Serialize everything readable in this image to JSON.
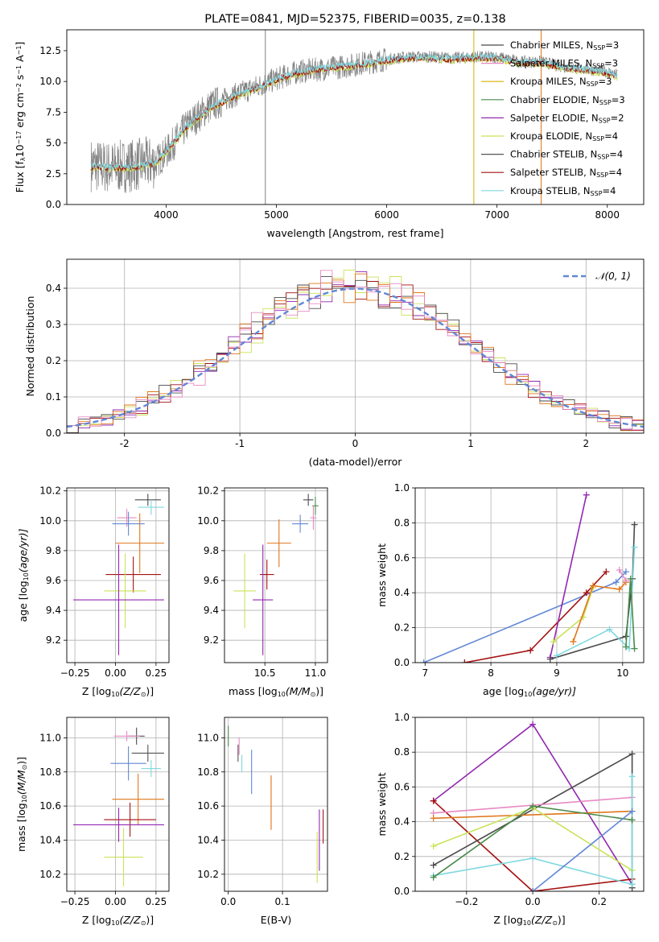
{
  "colors": {
    "Chabrier MILES": "#4a4a4a",
    "Salpeter MILES": "#e78ac3",
    "Kroupa MILES": "#d8b000",
    "Chabrier ELODIE": "#4b8a4b",
    "Salpeter ELODIE": "#9228b0",
    "Kroupa ELODIE": "#c9e35a",
    "Chabrier STELIB": "#555555",
    "Salpeter STELIB": "#a41212",
    "Kroupa STELIB": "#7fd8e0",
    "orange": "#e0761b",
    "blue": "#6187d6",
    "gray": "#808080",
    "normal": "#6187d6"
  },
  "chart_data": [
    {
      "id": "spectrum",
      "type": "line",
      "title": "PLATE=0841, MJD=52375, FIBERID=0035, z=0.138",
      "xlabel": "wavelength [Angstrom, rest frame]",
      "ylabel": "Flux [f",
      "ylabel_parts": [
        "Flux [f",
        "λ",
        "10",
        "−17",
        " erg cm",
        "−2",
        " s",
        "−1",
        " A",
        "−1",
        "]"
      ],
      "xlim": [
        3100,
        8330
      ],
      "ylim": [
        0,
        14.2
      ],
      "xticks": [
        4000,
        5000,
        6000,
        7000,
        8000
      ],
      "yticks": [
        0.0,
        2.5,
        5.0,
        7.5,
        10.0,
        12.5
      ],
      "grid": false,
      "legend_position": "top-right",
      "legend": [
        {
          "name": "Chabrier MILES",
          "nssp": "3"
        },
        {
          "name": "Salpeter MILES",
          "nssp": "3"
        },
        {
          "name": "Kroupa MILES",
          "nssp": "3"
        },
        {
          "name": "Chabrier ELODIE",
          "nssp": "3"
        },
        {
          "name": "Salpeter ELODIE",
          "nssp": "2"
        },
        {
          "name": "Kroupa ELODIE",
          "nssp": "4"
        },
        {
          "name": "Chabrier STELIB",
          "nssp": "4"
        },
        {
          "name": "Salpeter STELIB",
          "nssp": "4"
        },
        {
          "name": "Kroupa STELIB",
          "nssp": "4"
        }
      ],
      "nssp_label": "N",
      "nssp_sub": "SSP",
      "data_anchor_x": [
        3320,
        3500,
        3700,
        3900,
        4000,
        4200,
        4400,
        4600,
        4800,
        5000,
        5200,
        5400,
        5600,
        5800,
        6000,
        6200,
        6400,
        6600,
        6800,
        7000,
        7200,
        7400,
        7600,
        7800,
        8000,
        8090
      ],
      "observed_y": [
        3.2,
        3.0,
        3.2,
        3.4,
        4.2,
        6.5,
        8.0,
        8.8,
        9.5,
        10.2,
        10.8,
        11.0,
        11.2,
        11.5,
        11.8,
        12.0,
        12.0,
        11.9,
        12.0,
        12.0,
        11.6,
        11.6,
        11.2,
        11.0,
        10.8,
        10.5
      ],
      "model_y": [
        3.0,
        3.0,
        3.0,
        3.3,
        4.3,
        6.4,
        7.8,
        8.7,
        9.4,
        10.1,
        10.7,
        11.0,
        11.2,
        11.4,
        11.7,
        11.9,
        11.9,
        11.8,
        11.9,
        11.9,
        11.5,
        11.5,
        11.1,
        10.9,
        10.7,
        10.4
      ],
      "vertical_spikes": [
        {
          "x": 4900,
          "color": "gray"
        },
        {
          "x": 6790,
          "color": "Kroupa MILES"
        },
        {
          "x": 7400,
          "color": "orange"
        }
      ]
    },
    {
      "id": "residuals",
      "type": "step",
      "xlabel": "(data-model)/error",
      "ylabel": "Normed distribution",
      "xlim": [
        -2.5,
        2.5
      ],
      "ylim": [
        0,
        0.48
      ],
      "xticks": [
        -2,
        -1,
        0,
        1,
        2
      ],
      "yticks": [
        0.0,
        0.1,
        0.2,
        0.3,
        0.4
      ],
      "grid": true,
      "legend_position": "top-right",
      "legend": [
        {
          "name": "𝒩(0, 1)",
          "style": "dashed"
        }
      ],
      "normal_curve": {
        "mean": 0,
        "sigma": 1
      },
      "bin_width": 0.1,
      "series": [
        {
          "name": "Salpeter ELODIE",
          "values_mid": [
            -0.85,
            0.44,
            0.0,
            0.46,
            0.3
          ]
        },
        {
          "name": "Kroupa ELODIE",
          "values_mid": [
            -0.65,
            0.43,
            0.0,
            0.43,
            0.28
          ]
        },
        {
          "name": "Salpeter STELIB",
          "values_mid": [
            0.0,
            0.4,
            0.0,
            0.4,
            0.3
          ]
        },
        {
          "name": "orange",
          "values_mid": [
            0.0,
            0.4,
            0.0,
            0.4,
            0.3
          ]
        }
      ]
    },
    {
      "id": "age-vs-Z",
      "type": "errorbar",
      "xlabel": "Z [log",
      "xlabel_parts": [
        "Z [log",
        "10",
        "(Z/Z",
        "⊙",
        ")]"
      ],
      "ylabel_parts": [
        "age  [log",
        "10",
        "(age/yr)]"
      ],
      "xlim": [
        -0.3,
        0.33
      ],
      "ylim": [
        9.05,
        10.22
      ],
      "xticks": [
        -0.25,
        0.0,
        0.25
      ],
      "xticklabels": [
        "−0.25",
        "0.00",
        "0.25"
      ],
      "yticks": [
        9.2,
        9.4,
        9.6,
        9.8,
        10.0,
        10.2
      ],
      "grid": true,
      "points": [
        {
          "color": "Chabrier MILES",
          "x": 0.2,
          "xerr": 0.08,
          "y": 10.14,
          "yerr": 0.04
        },
        {
          "color": "Kroupa STELIB",
          "x": 0.22,
          "xerr": 0.08,
          "y": 10.09,
          "yerr": 0.05
        },
        {
          "color": "Salpeter MILES",
          "x": 0.07,
          "xerr": 0.06,
          "y": 10.02,
          "yerr": 0.06
        },
        {
          "color": "blue",
          "x": 0.08,
          "xerr": 0.1,
          "y": 9.98,
          "yerr": 0.08
        },
        {
          "color": "orange",
          "x": 0.15,
          "xerr": 0.15,
          "y": 9.85,
          "yerr": 0.2
        },
        {
          "color": "Salpeter STELIB",
          "x": 0.11,
          "xerr": 0.17,
          "y": 9.64,
          "yerr": 0.12
        },
        {
          "color": "Kroupa ELODIE",
          "x": 0.06,
          "xerr": 0.13,
          "y": 9.53,
          "yerr": 0.25
        },
        {
          "color": "Salpeter ELODIE",
          "x": 0.02,
          "xerr": 0.28,
          "y": 9.47,
          "yerr": 0.37
        }
      ]
    },
    {
      "id": "age-vs-mass",
      "type": "errorbar",
      "xlabel_parts": [
        "mass [log",
        "10",
        "(M/M",
        "⊙",
        ")]"
      ],
      "xlim": [
        10.1,
        11.12
      ],
      "ylim": [
        9.05,
        10.22
      ],
      "xticks": [
        10.5,
        11.0
      ],
      "xticklabels": [
        "10.5",
        "11.0"
      ],
      "yticks": [
        9.2,
        9.4,
        9.6,
        9.8,
        10.0,
        10.2
      ],
      "grid": true,
      "points": [
        {
          "color": "Chabrier MILES",
          "x": 10.93,
          "xerr": 0.05,
          "y": 10.14,
          "yerr": 0.04
        },
        {
          "color": "Chabrier ELODIE",
          "x": 11.0,
          "xerr": 0.03,
          "y": 10.1,
          "yerr": 0.06
        },
        {
          "color": "Salpeter MILES",
          "x": 10.98,
          "xerr": 0.03,
          "y": 10.02,
          "yerr": 0.08
        },
        {
          "color": "blue",
          "x": 10.85,
          "xerr": 0.08,
          "y": 9.98,
          "yerr": 0.06
        },
        {
          "color": "orange",
          "x": 10.64,
          "xerr": 0.12,
          "y": 9.85,
          "yerr": 0.16
        },
        {
          "color": "Salpeter STELIB",
          "x": 10.52,
          "xerr": 0.07,
          "y": 9.64,
          "yerr": 0.1
        },
        {
          "color": "Kroupa ELODIE",
          "x": 10.3,
          "xerr": 0.11,
          "y": 9.53,
          "yerr": 0.25
        },
        {
          "color": "Salpeter ELODIE",
          "x": 10.48,
          "xerr": 0.1,
          "y": 9.47,
          "yerr": 0.37
        }
      ]
    },
    {
      "id": "weight-vs-age",
      "type": "line",
      "xlabel_parts": [
        "age  [log",
        "10",
        "(age/yr)]"
      ],
      "ylabel": "mass weight",
      "xlim": [
        6.85,
        10.32
      ],
      "ylim": [
        0,
        1.0
      ],
      "xticks": [
        7,
        8,
        9,
        10
      ],
      "yticks": [
        0.0,
        0.2,
        0.4,
        0.6,
        0.8,
        1.0
      ],
      "grid": true,
      "series": [
        {
          "name": "blue",
          "x": [
            6.98,
            9.9,
            10.05
          ],
          "y": [
            0.0,
            0.46,
            0.52
          ]
        },
        {
          "name": "Salpeter STELIB",
          "x": [
            7.6,
            8.6,
            9.45,
            9.75
          ],
          "y": [
            0.0,
            0.07,
            0.4,
            0.52
          ]
        },
        {
          "name": "Salpeter ELODIE",
          "x": [
            8.9,
            9.45
          ],
          "y": [
            0.03,
            0.96
          ]
        },
        {
          "name": "Chabrier MILES",
          "x": [
            8.9,
            10.05,
            10.15,
            10.18
          ],
          "y": [
            0.02,
            0.15,
            0.48,
            0.79
          ]
        },
        {
          "name": "Kroupa ELODIE",
          "x": [
            8.95,
            9.4,
            9.55
          ],
          "y": [
            0.12,
            0.26,
            0.43
          ]
        },
        {
          "name": "Kroupa STELIB",
          "x": [
            9.0,
            9.8,
            10.1,
            10.18
          ],
          "y": [
            0.04,
            0.19,
            0.08,
            0.66
          ]
        },
        {
          "name": "orange",
          "x": [
            9.25,
            9.55,
            9.95,
            10.05
          ],
          "y": [
            0.12,
            0.44,
            0.42,
            0.46
          ]
        },
        {
          "name": "Chabrier ELODIE",
          "x": [
            10.05,
            10.12,
            10.18
          ],
          "y": [
            0.09,
            0.48,
            0.08
          ]
        },
        {
          "name": "Salpeter MILES",
          "x": [
            9.95,
            10.05
          ],
          "y": [
            0.53,
            0.47
          ]
        }
      ]
    },
    {
      "id": "mass-vs-Z",
      "type": "errorbar",
      "xlabel_parts": [
        "Z [log",
        "10",
        "(Z/Z",
        "⊙",
        ")]"
      ],
      "ylabel_parts": [
        "mass [log",
        "10",
        "(M/M",
        "⊙",
        ")]"
      ],
      "xlim": [
        -0.3,
        0.33
      ],
      "ylim": [
        10.1,
        11.12
      ],
      "xticks": [
        -0.25,
        0.0,
        0.25
      ],
      "xticklabels": [
        "−0.25",
        "0.00",
        "0.25"
      ],
      "yticks": [
        10.2,
        10.4,
        10.6,
        10.8,
        11.0
      ],
      "grid": true,
      "points": [
        {
          "color": "Chabrier MILES",
          "x": 0.13,
          "xerr": 0.05,
          "y": 11.01,
          "yerr": 0.05
        },
        {
          "color": "Salpeter MILES",
          "x": 0.07,
          "xerr": 0.08,
          "y": 11.01,
          "yerr": 0.03
        },
        {
          "color": "Chabrier STELIB",
          "x": 0.2,
          "xerr": 0.1,
          "y": 10.91,
          "yerr": 0.05
        },
        {
          "color": "blue",
          "x": 0.08,
          "xerr": 0.11,
          "y": 10.85,
          "yerr": 0.1
        },
        {
          "color": "Kroupa STELIB",
          "x": 0.22,
          "xerr": 0.06,
          "y": 10.82,
          "yerr": 0.05
        },
        {
          "color": "orange",
          "x": 0.14,
          "xerr": 0.16,
          "y": 10.64,
          "yerr": 0.15
        },
        {
          "color": "Salpeter STELIB",
          "x": 0.09,
          "xerr": 0.16,
          "y": 10.52,
          "yerr": 0.1
        },
        {
          "color": "Salpeter ELODIE",
          "x": 0.02,
          "xerr": 0.28,
          "y": 10.49,
          "yerr": 0.1
        },
        {
          "color": "Kroupa ELODIE",
          "x": 0.05,
          "xerr": 0.12,
          "y": 10.3,
          "yerr": 0.17
        }
      ]
    },
    {
      "id": "mass-vs-ebv",
      "type": "errorbar",
      "xlabel": "E(B-V)",
      "xlim": [
        -0.007,
        0.183
      ],
      "ylim": [
        10.1,
        11.12
      ],
      "xticks": [
        0.0,
        0.1
      ],
      "xticklabels": [
        "0.0",
        "0.1"
      ],
      "yticks": [
        10.2,
        10.4,
        10.6,
        10.8,
        11.0
      ],
      "grid": true,
      "points": [
        {
          "color": "Chabrier ELODIE",
          "x": 0.0,
          "xerr": 0.0,
          "y": 11.01,
          "yerr": 0.06
        },
        {
          "color": "Salpeter MILES",
          "x": 0.02,
          "xerr": 0.0,
          "y": 10.95,
          "yerr": 0.05
        },
        {
          "color": "Chabrier STELIB",
          "x": 0.018,
          "xerr": 0.0,
          "y": 10.91,
          "yerr": 0.05
        },
        {
          "color": "Kroupa STELIB",
          "x": 0.025,
          "xerr": 0.0,
          "y": 10.85,
          "yerr": 0.05
        },
        {
          "color": "blue",
          "x": 0.043,
          "xerr": 0.0,
          "y": 10.8,
          "yerr": 0.13
        },
        {
          "color": "orange",
          "x": 0.079,
          "xerr": 0.0,
          "y": 10.62,
          "yerr": 0.16
        },
        {
          "color": "Kroupa ELODIE",
          "x": 0.164,
          "xerr": 0.0,
          "y": 10.3,
          "yerr": 0.15
        },
        {
          "color": "Salpeter ELODIE",
          "x": 0.168,
          "xerr": 0.0,
          "y": 10.4,
          "yerr": 0.18
        },
        {
          "color": "Salpeter STELIB",
          "x": 0.175,
          "xerr": 0.0,
          "y": 10.48,
          "yerr": 0.1
        }
      ]
    },
    {
      "id": "weight-vs-Z",
      "type": "line",
      "xlabel_parts": [
        "Z [log",
        "10",
        "(Z/Z",
        "⊙",
        ")]"
      ],
      "ylabel": "mass weight",
      "xlim": [
        -0.355,
        0.335
      ],
      "ylim": [
        0,
        1.0
      ],
      "xticks": [
        -0.2,
        0.0,
        0.2
      ],
      "xticklabels": [
        "−0.2",
        "0.0",
        "0.2"
      ],
      "yticks": [
        0.0,
        0.2,
        0.4,
        0.6,
        0.8,
        1.0
      ],
      "grid": true,
      "series": [
        {
          "name": "Salpeter ELODIE",
          "x": [
            -0.3,
            0.0,
            0.3
          ],
          "y": [
            0.52,
            0.96,
            0.04
          ]
        },
        {
          "name": "Salpeter STELIB",
          "x": [
            -0.3,
            0.0,
            0.3
          ],
          "y": [
            0.52,
            0.0,
            0.07
          ]
        },
        {
          "name": "Chabrier MILES",
          "x": [
            -0.3,
            0.3,
            0.3
          ],
          "y": [
            0.15,
            0.79,
            0.02
          ]
        },
        {
          "name": "Salpeter MILES",
          "x": [
            -0.3,
            0.3
          ],
          "y": [
            0.45,
            0.54
          ]
        },
        {
          "name": "orange",
          "x": [
            -0.3,
            0.3
          ],
          "y": [
            0.42,
            0.46
          ]
        },
        {
          "name": "Kroupa ELODIE",
          "x": [
            -0.3,
            0.0,
            0.3
          ],
          "y": [
            0.26,
            0.48,
            0.12
          ]
        },
        {
          "name": "Kroupa STELIB",
          "x": [
            -0.3,
            0.0,
            0.3,
            0.3
          ],
          "y": [
            0.09,
            0.19,
            0.04,
            0.66
          ]
        },
        {
          "name": "Chabrier ELODIE",
          "x": [
            -0.3,
            0.0,
            0.3
          ],
          "y": [
            0.08,
            0.49,
            0.41
          ]
        },
        {
          "name": "blue",
          "x": [
            0.0,
            0.3
          ],
          "y": [
            0.0,
            0.46
          ]
        }
      ]
    }
  ]
}
